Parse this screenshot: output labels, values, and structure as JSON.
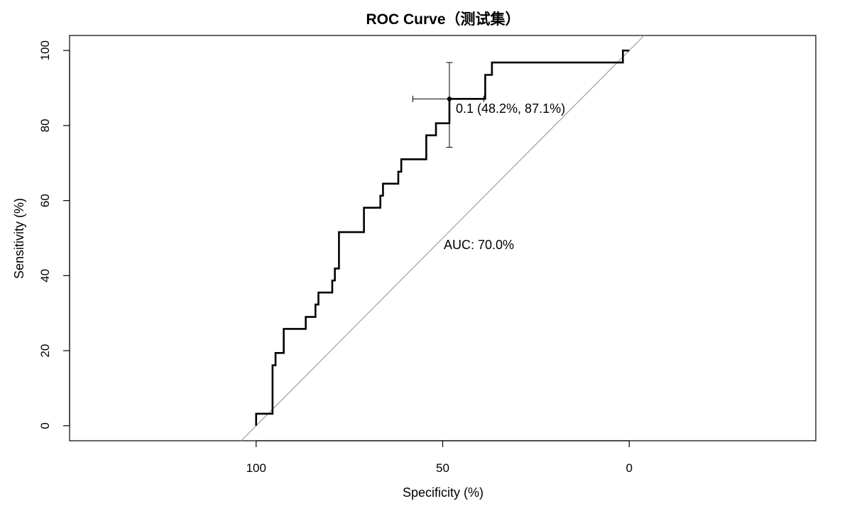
{
  "chart_data": {
    "type": "line",
    "title": "ROC Curve（测试集）",
    "xlabel": "Specificity (%)",
    "ylabel": "Sensitivity (%)",
    "xlim": [
      150,
      -50
    ],
    "ylim": [
      -4,
      104
    ],
    "x_ticks": [
      100,
      50,
      0
    ],
    "x_tick_labels": [
      "100",
      "50",
      "0"
    ],
    "y_ticks": [
      0,
      20,
      40,
      60,
      80,
      100
    ],
    "y_tick_labels": [
      "0",
      "20",
      "40",
      "60",
      "80",
      "100"
    ],
    "series": [
      {
        "color": "#000000",
        "points": [
          [
            100,
            0
          ],
          [
            100,
            3.2
          ],
          [
            95.6,
            3.2
          ],
          [
            95.6,
            16.1
          ],
          [
            94.8,
            16.1
          ],
          [
            94.8,
            19.4
          ],
          [
            92.6,
            19.4
          ],
          [
            92.6,
            25.8
          ],
          [
            86.7,
            25.8
          ],
          [
            86.7,
            29.0
          ],
          [
            84.1,
            29.0
          ],
          [
            84.1,
            32.3
          ],
          [
            83.3,
            32.3
          ],
          [
            83.3,
            35.5
          ],
          [
            79.6,
            35.5
          ],
          [
            79.6,
            38.7
          ],
          [
            78.9,
            38.7
          ],
          [
            78.9,
            41.9
          ],
          [
            77.8,
            41.9
          ],
          [
            77.8,
            51.6
          ],
          [
            71.1,
            51.6
          ],
          [
            71.1,
            58.1
          ],
          [
            66.7,
            58.1
          ],
          [
            66.7,
            61.3
          ],
          [
            66.0,
            61.3
          ],
          [
            66.0,
            64.5
          ],
          [
            61.9,
            64.5
          ],
          [
            61.9,
            67.7
          ],
          [
            61.1,
            67.7
          ],
          [
            61.1,
            71.0
          ],
          [
            54.4,
            71.0
          ],
          [
            54.4,
            77.4
          ],
          [
            51.8,
            77.4
          ],
          [
            51.8,
            80.6
          ],
          [
            48.2,
            80.6
          ],
          [
            48.2,
            87.1
          ],
          [
            38.6,
            87.1
          ],
          [
            38.6,
            93.5
          ],
          [
            36.8,
            93.5
          ],
          [
            36.8,
            96.8
          ],
          [
            1.7,
            96.8
          ],
          [
            1.7,
            100
          ],
          [
            0,
            100
          ]
        ]
      }
    ],
    "diagonal": {
      "color": "#a0a0a0"
    },
    "best_threshold": {
      "specificity": 48.2,
      "sensitivity": 87.1,
      "specificity_ci": [
        58.0,
        39.0
      ],
      "sensitivity_ci": [
        74.2,
        96.8
      ],
      "label": "0.1 (48.2%, 87.1%)"
    },
    "auc_label": "AUC: 70.0%",
    "grid": false,
    "legend": "none"
  }
}
